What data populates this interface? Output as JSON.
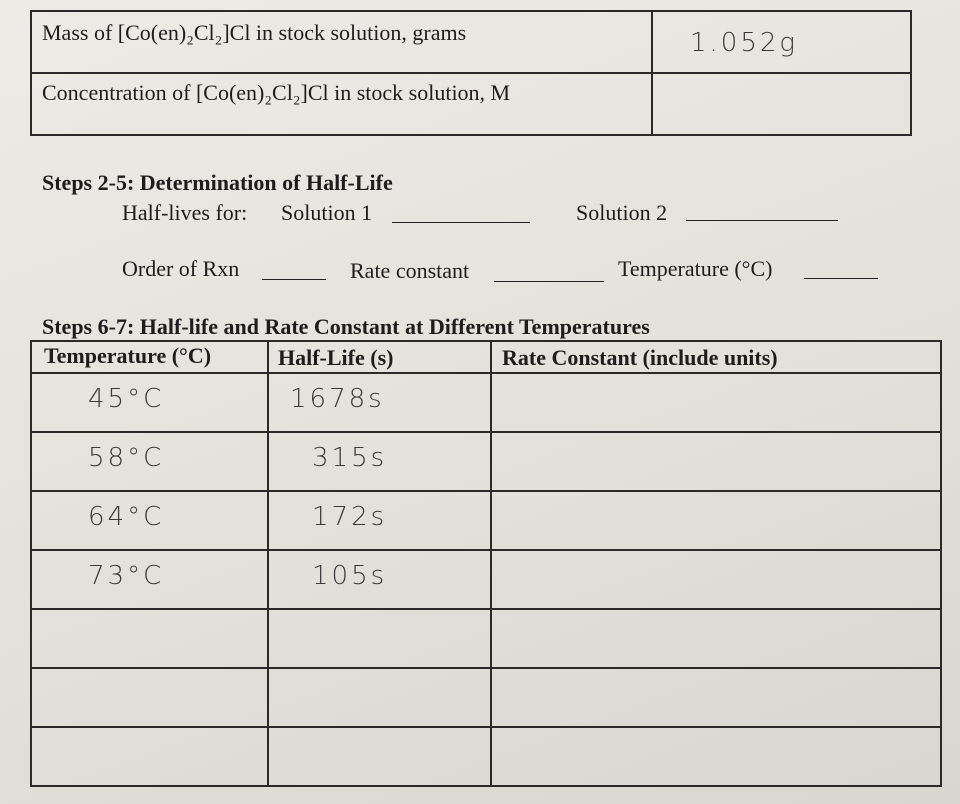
{
  "top_table": {
    "rows": [
      {
        "label": "Mass of [Co(en)₂Cl₂]Cl in stock solution, grams",
        "value": "1.052g"
      },
      {
        "label": "Concentration of [Co(en)₂Cl₂]Cl in stock solution, M"
      }
    ]
  },
  "half_life_section": {
    "heading": "Steps 2-5: Determination of Half-Life",
    "half_lives_label": "Half-lives for:",
    "solution_1": "Solution 1",
    "solution_2": "Solution 2",
    "order": "Order of Rxn",
    "rate_constant": "Rate constant",
    "temperature": "Temperature (°C)"
  },
  "temperature_section": {
    "heading": "Steps 6-7: Half-life and Rate Constant at Different Temperatures",
    "columns": [
      "Temperature (°C)",
      "Half-Life (s)",
      "Rate Constant (include units)"
    ],
    "rows": [
      [
        "45°C",
        "1678s"
      ],
      [
        "58°C",
        "315s"
      ],
      [
        "64°C",
        "172s"
      ],
      [
        "73°C",
        "105s"
      ]
    ]
  }
}
